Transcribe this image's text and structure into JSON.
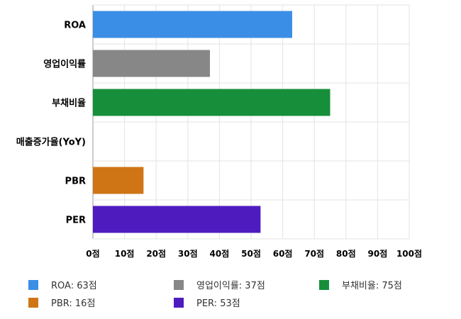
{
  "chart_data": {
    "type": "bar",
    "orientation": "horizontal",
    "categories": [
      "ROA",
      "영업이익률",
      "부채비율",
      "매출증가율(YoY)",
      "PBR",
      "PER"
    ],
    "values": [
      63,
      37,
      75,
      0,
      16,
      53
    ],
    "colors": [
      "#3a8ee6",
      "#878787",
      "#178f3a",
      "#ffffff",
      "#cf7516",
      "#4e1bbf"
    ],
    "xlim": [
      0,
      100
    ],
    "xticks": [
      0,
      10,
      20,
      30,
      40,
      50,
      60,
      70,
      80,
      90,
      100
    ],
    "tick_suffix": "점",
    "grid": true,
    "legend_position": "bottom",
    "legend": [
      {
        "label": "ROA: 63점",
        "color": "#3a8ee6"
      },
      {
        "label": "영업이익률: 37점",
        "color": "#878787"
      },
      {
        "label": "부채비율: 75점",
        "color": "#178f3a"
      },
      {
        "label": "PBR: 16점",
        "color": "#cf7516"
      },
      {
        "label": "PER: 53점",
        "color": "#4e1bbf"
      }
    ]
  }
}
